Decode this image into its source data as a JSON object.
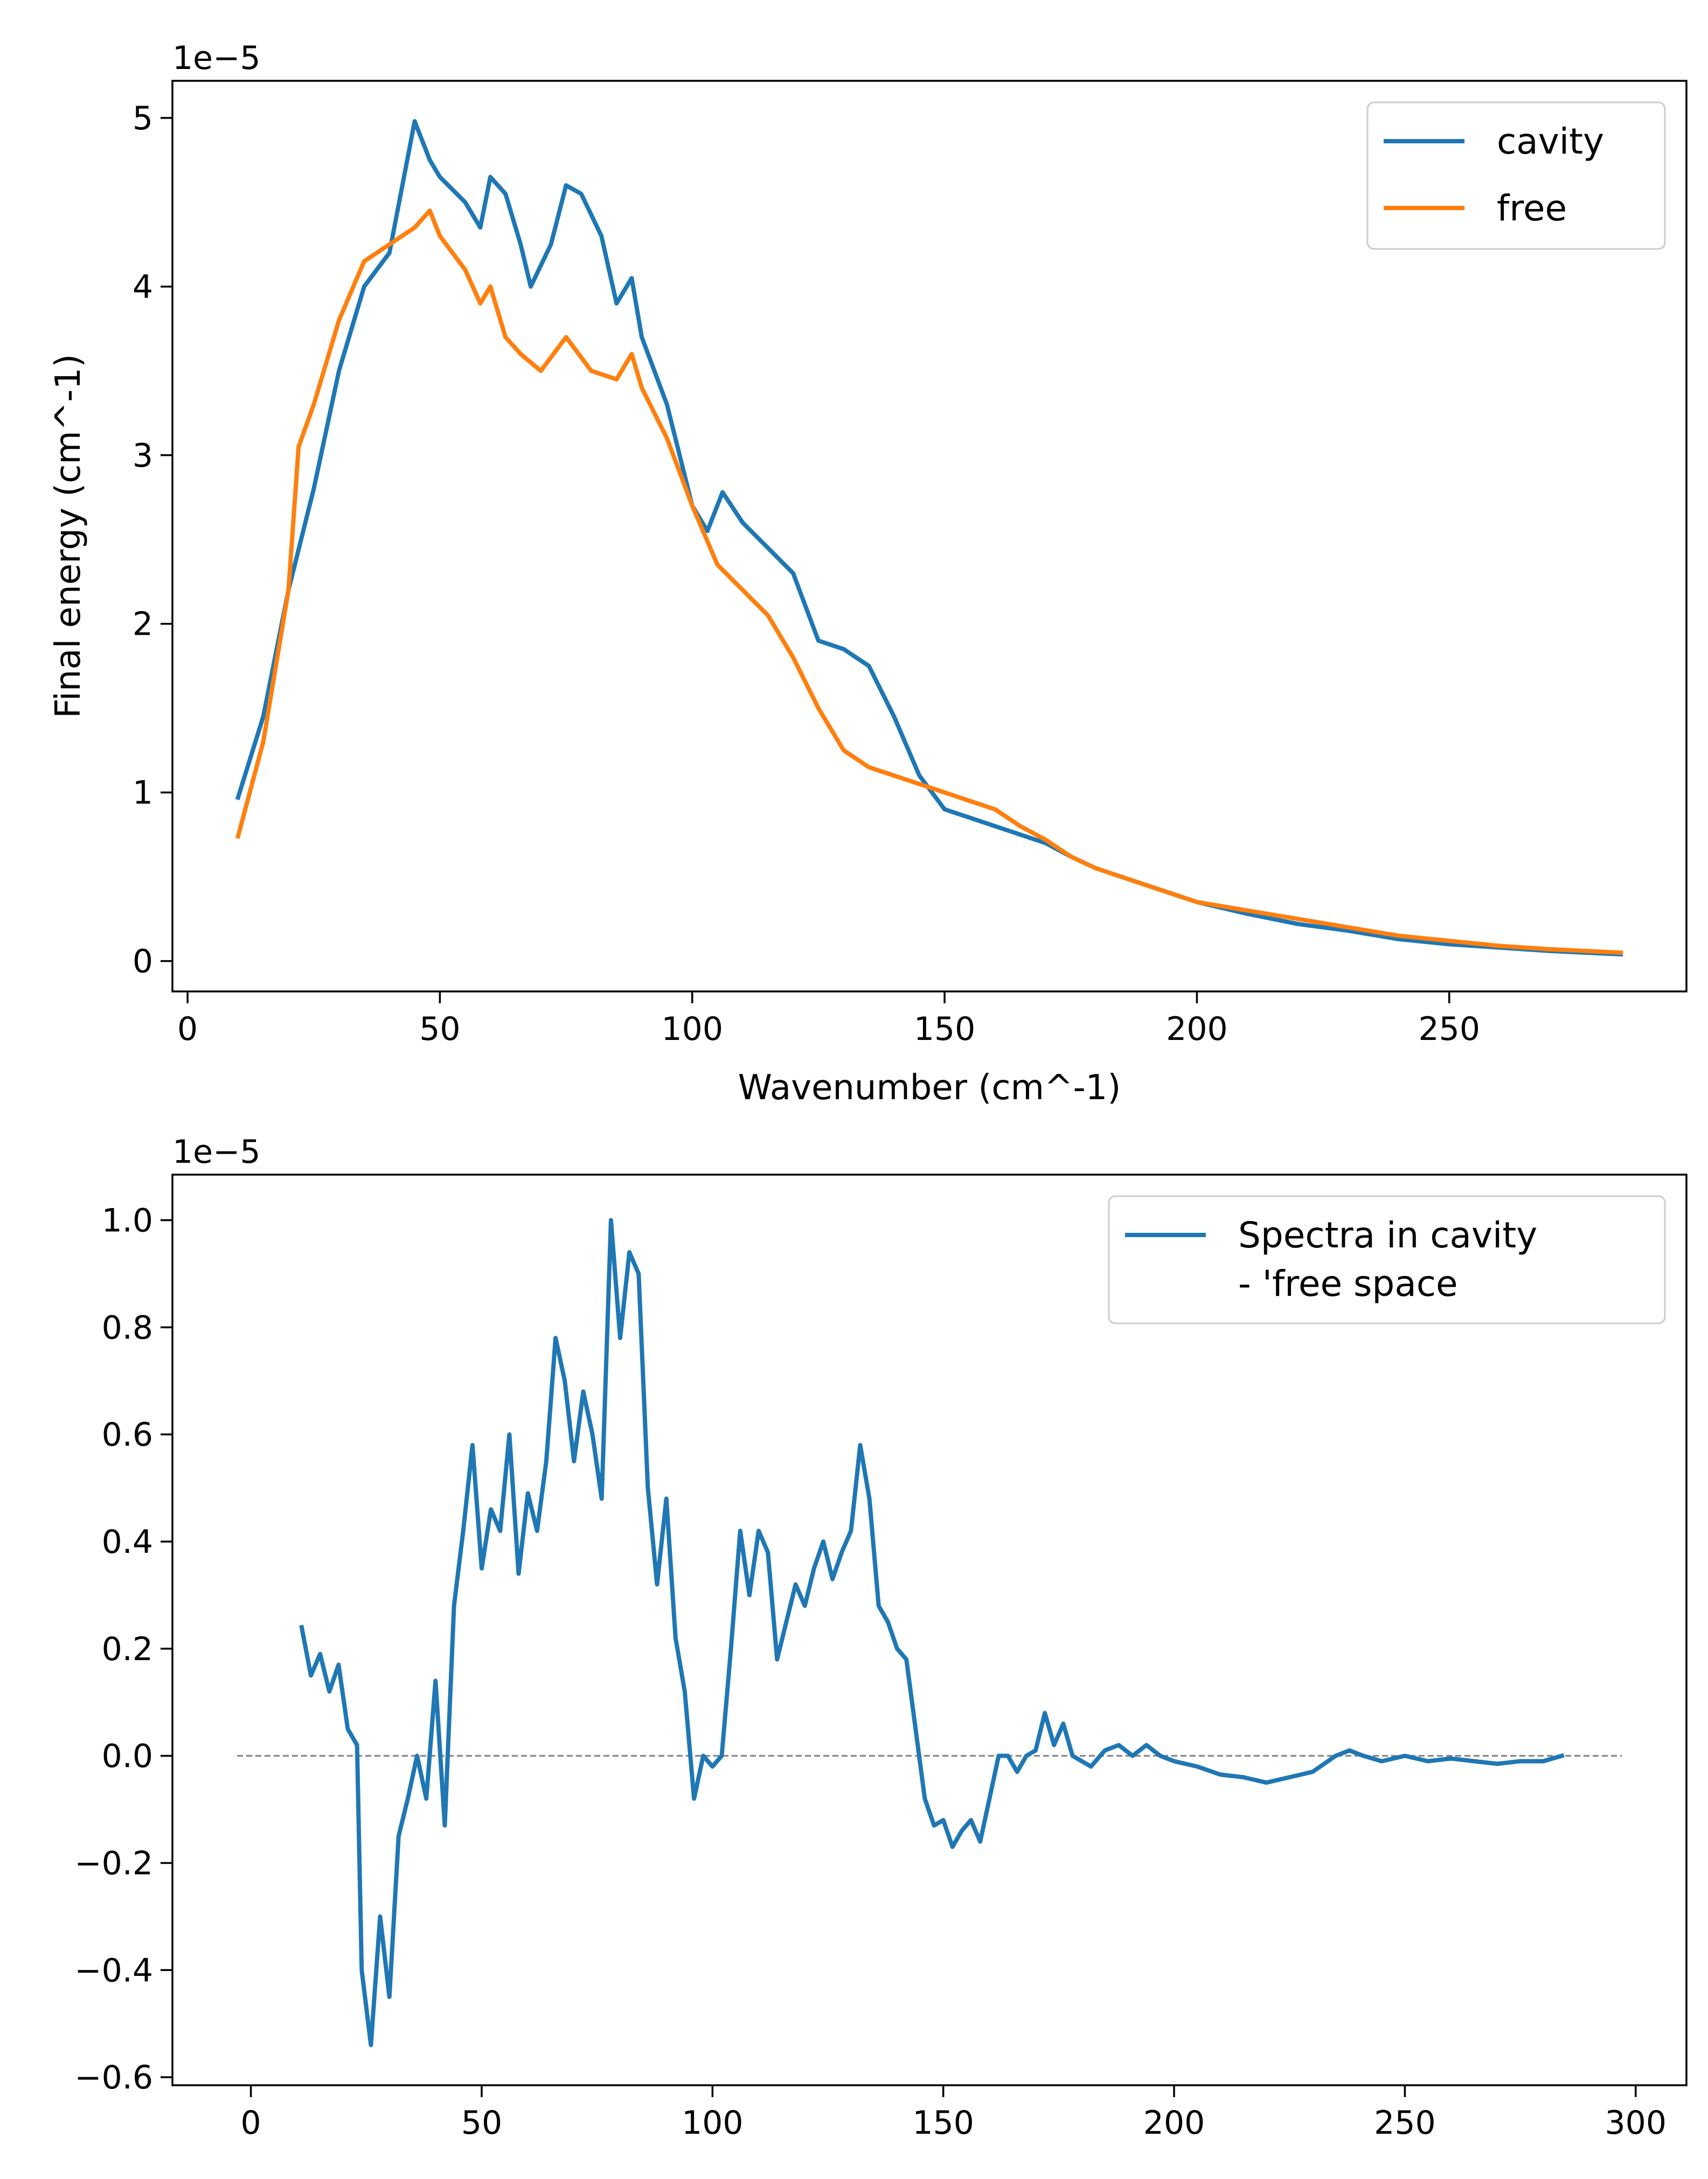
{
  "chart_data": [
    {
      "type": "line",
      "xlabel": "Wavenumber (cm^-1)",
      "ylabel": "Final energy (cm^-1)",
      "offset_text": "1e−5",
      "xlim": [
        -3,
        297
      ],
      "ylim": [
        -1.8e-06,
        5.22e-05
      ],
      "xticks": [
        0,
        50,
        100,
        150,
        200,
        250
      ],
      "xtick_labels": [
        "0",
        "50",
        "100",
        "150",
        "200",
        "250"
      ],
      "yticks": [
        0,
        1e-05,
        2e-05,
        3e-05,
        4e-05,
        5e-05
      ],
      "ytick_labels": [
        "0",
        "1",
        "2",
        "3",
        "4",
        "5"
      ],
      "legend_position": "upper right",
      "grid": false,
      "series": [
        {
          "name": "cavity",
          "color": "#1f77b4",
          "points": [
            [
              10,
              9.7e-06
            ],
            [
              15,
              1.45e-05
            ],
            [
              20,
              2.2e-05
            ],
            [
              25,
              2.8e-05
            ],
            [
              30,
              3.5e-05
            ],
            [
              35,
              4e-05
            ],
            [
              40,
              4.2e-05
            ],
            [
              45,
              4.98e-05
            ],
            [
              48,
              4.75e-05
            ],
            [
              50,
              4.65e-05
            ],
            [
              55,
              4.5e-05
            ],
            [
              58,
              4.35e-05
            ],
            [
              60,
              4.65e-05
            ],
            [
              63,
              4.55e-05
            ],
            [
              66,
              4.25e-05
            ],
            [
              68,
              4e-05
            ],
            [
              72,
              4.25e-05
            ],
            [
              75,
              4.6e-05
            ],
            [
              78,
              4.55e-05
            ],
            [
              82,
              4.3e-05
            ],
            [
              85,
              3.9e-05
            ],
            [
              88,
              4.05e-05
            ],
            [
              90,
              3.7e-05
            ],
            [
              95,
              3.3e-05
            ],
            [
              100,
              2.7e-05
            ],
            [
              103,
              2.55e-05
            ],
            [
              106,
              2.78e-05
            ],
            [
              110,
              2.6e-05
            ],
            [
              115,
              2.45e-05
            ],
            [
              120,
              2.3e-05
            ],
            [
              125,
              1.9e-05
            ],
            [
              130,
              1.85e-05
            ],
            [
              135,
              1.75e-05
            ],
            [
              140,
              1.45e-05
            ],
            [
              145,
              1.1e-05
            ],
            [
              150,
              9e-06
            ],
            [
              155,
              8.5e-06
            ],
            [
              160,
              8e-06
            ],
            [
              165,
              7.5e-06
            ],
            [
              170,
              7e-06
            ],
            [
              175,
              6.2e-06
            ],
            [
              180,
              5.5e-06
            ],
            [
              190,
              4.5e-06
            ],
            [
              200,
              3.5e-06
            ],
            [
              210,
              2.8e-06
            ],
            [
              220,
              2.2e-06
            ],
            [
              230,
              1.8e-06
            ],
            [
              240,
              1.3e-06
            ],
            [
              250,
              1e-06
            ],
            [
              260,
              8e-07
            ],
            [
              270,
              6e-07
            ],
            [
              284,
              4e-07
            ]
          ]
        },
        {
          "name": "free",
          "color": "#ff7f0e",
          "points": [
            [
              10,
              7.4e-06
            ],
            [
              15,
              1.3e-05
            ],
            [
              20,
              2.2e-05
            ],
            [
              22,
              3.05e-05
            ],
            [
              25,
              3.3e-05
            ],
            [
              30,
              3.8e-05
            ],
            [
              35,
              4.15e-05
            ],
            [
              40,
              4.25e-05
            ],
            [
              45,
              4.35e-05
            ],
            [
              48,
              4.45e-05
            ],
            [
              50,
              4.3e-05
            ],
            [
              55,
              4.1e-05
            ],
            [
              58,
              3.9e-05
            ],
            [
              60,
              4e-05
            ],
            [
              63,
              3.7e-05
            ],
            [
              66,
              3.6e-05
            ],
            [
              70,
              3.5e-05
            ],
            [
              75,
              3.7e-05
            ],
            [
              80,
              3.5e-05
            ],
            [
              85,
              3.45e-05
            ],
            [
              88,
              3.6e-05
            ],
            [
              90,
              3.4e-05
            ],
            [
              95,
              3.1e-05
            ],
            [
              100,
              2.7e-05
            ],
            [
              105,
              2.35e-05
            ],
            [
              110,
              2.2e-05
            ],
            [
              115,
              2.05e-05
            ],
            [
              120,
              1.8e-05
            ],
            [
              125,
              1.5e-05
            ],
            [
              130,
              1.25e-05
            ],
            [
              135,
              1.15e-05
            ],
            [
              140,
              1.1e-05
            ],
            [
              145,
              1.05e-05
            ],
            [
              150,
              1e-05
            ],
            [
              155,
              9.5e-06
            ],
            [
              160,
              9e-06
            ],
            [
              165,
              8e-06
            ],
            [
              170,
              7.2e-06
            ],
            [
              175,
              6.2e-06
            ],
            [
              180,
              5.5e-06
            ],
            [
              190,
              4.5e-06
            ],
            [
              200,
              3.5e-06
            ],
            [
              210,
              3e-06
            ],
            [
              220,
              2.5e-06
            ],
            [
              230,
              2e-06
            ],
            [
              240,
              1.5e-06
            ],
            [
              250,
              1.2e-06
            ],
            [
              260,
              9e-07
            ],
            [
              270,
              7e-07
            ],
            [
              284,
              5e-07
            ]
          ]
        }
      ]
    },
    {
      "type": "line",
      "xlabel": "",
      "ylabel": "",
      "offset_text": "1e−5",
      "xlim": [
        -17,
        311
      ],
      "ylim": [
        -6.15e-06,
        1.085e-05
      ],
      "xticks": [
        0,
        50,
        100,
        150,
        200,
        250,
        300
      ],
      "xtick_labels": [
        "0",
        "50",
        "100",
        "150",
        "200",
        "250",
        "300"
      ],
      "yticks": [
        -6e-06,
        -4e-06,
        -2e-06,
        0,
        2e-06,
        4e-06,
        6e-06,
        8e-06,
        1e-05
      ],
      "ytick_labels": [
        "−0.6",
        "−0.4",
        "−0.2",
        "0.0",
        "0.2",
        "0.4",
        "0.6",
        "0.8",
        "1.0"
      ],
      "legend_position": "upper right",
      "grid": false,
      "reference_line": {
        "y": 0,
        "x": [
          -3,
          297
        ],
        "color": "#808080",
        "style": "dashed"
      },
      "series": [
        {
          "name": "Spectra in cavity\n- 'free space",
          "color": "#1f77b4",
          "points": [
            [
              11,
              2.4e-06
            ],
            [
              13,
              1.5e-06
            ],
            [
              15,
              1.9e-06
            ],
            [
              17,
              1.2e-06
            ],
            [
              19,
              1.7e-06
            ],
            [
              21,
              5e-07
            ],
            [
              23,
              2e-07
            ],
            [
              24,
              -4e-06
            ],
            [
              26,
              -5.4e-06
            ],
            [
              28,
              -3e-06
            ],
            [
              30,
              -4.5e-06
            ],
            [
              32,
              -1.5e-06
            ],
            [
              34,
              -8e-07
            ],
            [
              36,
              -0.0
            ],
            [
              38,
              -8e-07
            ],
            [
              40,
              1.4e-06
            ],
            [
              42,
              -1.3e-06
            ],
            [
              44,
              2.8e-06
            ],
            [
              46,
              4.2e-06
            ],
            [
              48,
              5.8e-06
            ],
            [
              50,
              3.5e-06
            ],
            [
              52,
              4.6e-06
            ],
            [
              54,
              4.2e-06
            ],
            [
              56,
              6e-06
            ],
            [
              58,
              3.4e-06
            ],
            [
              60,
              4.9e-06
            ],
            [
              62,
              4.2e-06
            ],
            [
              64,
              5.5e-06
            ],
            [
              66,
              7.8e-06
            ],
            [
              68,
              7e-06
            ],
            [
              70,
              5.5e-06
            ],
            [
              72,
              6.8e-06
            ],
            [
              74,
              6e-06
            ],
            [
              76,
              4.8e-06
            ],
            [
              78,
              1e-05
            ],
            [
              80,
              7.8e-06
            ],
            [
              82,
              9.4e-06
            ],
            [
              84,
              9e-06
            ],
            [
              86,
              5e-06
            ],
            [
              88,
              3.2e-06
            ],
            [
              90,
              4.8e-06
            ],
            [
              92,
              2.2e-06
            ],
            [
              94,
              1.2e-06
            ],
            [
              96,
              -8e-07
            ],
            [
              98,
              0.0
            ],
            [
              100,
              -2e-07
            ],
            [
              102,
              0.0
            ],
            [
              104,
              2e-06
            ],
            [
              106,
              4.2e-06
            ],
            [
              108,
              3e-06
            ],
            [
              110,
              4.2e-06
            ],
            [
              112,
              3.8e-06
            ],
            [
              114,
              1.8e-06
            ],
            [
              116,
              2.5e-06
            ],
            [
              118,
              3.2e-06
            ],
            [
              120,
              2.8e-06
            ],
            [
              122,
              3.5e-06
            ],
            [
              124,
              4e-06
            ],
            [
              126,
              3.3e-06
            ],
            [
              128,
              3.8e-06
            ],
            [
              130,
              4.2e-06
            ],
            [
              132,
              5.8e-06
            ],
            [
              134,
              4.8e-06
            ],
            [
              136,
              2.8e-06
            ],
            [
              138,
              2.5e-06
            ],
            [
              140,
              2e-06
            ],
            [
              142,
              1.8e-06
            ],
            [
              144,
              5e-07
            ],
            [
              146,
              -8e-07
            ],
            [
              148,
              -1.3e-06
            ],
            [
              150,
              -1.2e-06
            ],
            [
              152,
              -1.7e-06
            ],
            [
              154,
              -1.4e-06
            ],
            [
              156,
              -1.2e-06
            ],
            [
              158,
              -1.6e-06
            ],
            [
              160,
              -8e-07
            ],
            [
              162,
              0.0
            ],
            [
              164,
              0.0
            ],
            [
              166,
              -3e-07
            ],
            [
              168,
              0.0
            ],
            [
              170,
              1e-07
            ],
            [
              172,
              8e-07
            ],
            [
              174,
              2e-07
            ],
            [
              176,
              6e-07
            ],
            [
              178,
              0.0
            ],
            [
              180,
              -1e-07
            ],
            [
              182,
              -2e-07
            ],
            [
              185,
              1e-07
            ],
            [
              188,
              2e-07
            ],
            [
              191,
              0.0
            ],
            [
              194,
              2e-07
            ],
            [
              197,
              0.0
            ],
            [
              200,
              -1e-07
            ],
            [
              205,
              -2e-07
            ],
            [
              210,
              -3.5e-07
            ],
            [
              215,
              -4e-07
            ],
            [
              220,
              -5e-07
            ],
            [
              225,
              -4e-07
            ],
            [
              230,
              -3e-07
            ],
            [
              235,
              0.0
            ],
            [
              238,
              1e-07
            ],
            [
              241,
              0.0
            ],
            [
              245,
              -1e-07
            ],
            [
              250,
              0.0
            ],
            [
              255,
              -1e-07
            ],
            [
              260,
              -5e-08
            ],
            [
              265,
              -1e-07
            ],
            [
              270,
              -1.5e-07
            ],
            [
              275,
              -1e-07
            ],
            [
              280,
              -1e-07
            ],
            [
              284,
              0.0
            ]
          ]
        }
      ]
    }
  ]
}
